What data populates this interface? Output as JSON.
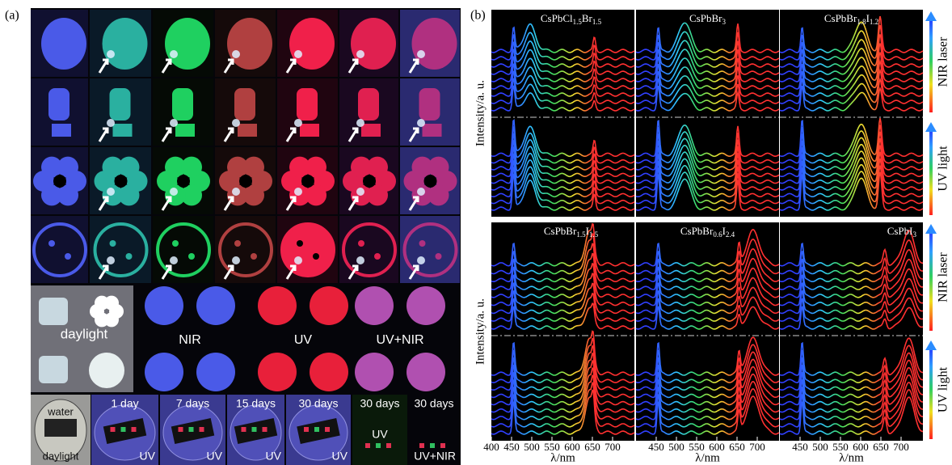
{
  "panel_a": {
    "label": "(a)",
    "modes": {
      "daylight": "daylight",
      "nir": "NIR",
      "uv": "UV",
      "uv_nir": "UV+NIR"
    },
    "bottom_row": {
      "water": "water",
      "daylight": "daylight",
      "captions": [
        "1 day",
        "7 days",
        "15 days",
        "30 days",
        "30 days",
        "30 days"
      ],
      "modes": [
        "UV",
        "UV",
        "UV",
        "UV",
        "UV",
        "UV+NIR"
      ]
    }
  },
  "panel_b": {
    "label": "(b)",
    "y_label": "Intensity/a. u.",
    "x_label": "λ/nm",
    "side_labels": [
      "NIR laser",
      "UV light"
    ],
    "compounds": [
      [
        {
          "text": "CsPbCl"
        },
        {
          "sub": "1.5"
        },
        {
          "text": "Br"
        },
        {
          "sub": "1.5"
        }
      ],
      [
        {
          "text": "CsPbBr"
        },
        {
          "sub": "3"
        }
      ],
      [
        {
          "text": "CsPbBr"
        },
        {
          "sub": "1.8"
        },
        {
          "text": "I"
        },
        {
          "sub": "1.2"
        }
      ],
      [
        {
          "text": "CsPbBr"
        },
        {
          "sub": "1.5"
        },
        {
          "text": "I"
        },
        {
          "sub": "1.5"
        }
      ],
      [
        {
          "text": "CsPbBr"
        },
        {
          "sub": "0.6"
        },
        {
          "text": "I"
        },
        {
          "sub": "2.4"
        }
      ],
      [
        {
          "text": "CsPbI"
        },
        {
          "sub": "3"
        }
      ]
    ],
    "x_ticks": [
      [
        400,
        450,
        500,
        550,
        600,
        650,
        700
      ],
      [
        450,
        500,
        550,
        600,
        650,
        700
      ],
      [
        450,
        500,
        550,
        600,
        650,
        700
      ]
    ]
  }
}
